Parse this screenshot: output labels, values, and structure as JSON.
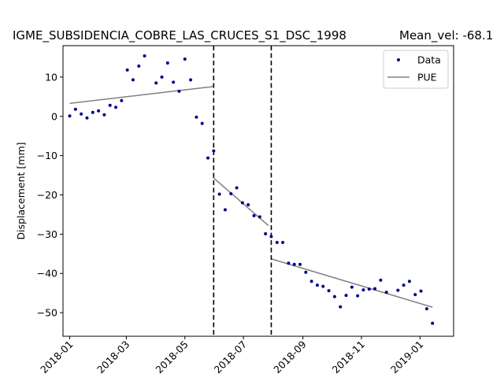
{
  "chart_data": {
    "type": "scatter",
    "title": "IGME_SUBSIDENCIA_COBRE_LAS_CRUCES_S1_DSC_1998",
    "mean_vel_text": "Mean_vel: -68.1",
    "xlabel": "",
    "ylabel": "Displacement [mm]",
    "xlim": [
      "2017-12-25",
      "2019-02-05"
    ],
    "ylim": [
      -56,
      18
    ],
    "x_ticks": [
      "2018-01",
      "2018-03",
      "2018-05",
      "2018-07",
      "2018-09",
      "2018-11",
      "2019-01"
    ],
    "y_ticks": [
      10,
      0,
      -10,
      -20,
      -30,
      -40,
      -50
    ],
    "y_tick_labels": [
      "10",
      "0",
      "−10",
      "−20",
      "−30",
      "−40",
      "−50"
    ],
    "grid": false,
    "legend_position": "top-right",
    "colors": {
      "data": "#00008b",
      "pue": "#808080",
      "breaks": "#000000"
    },
    "series": [
      {
        "name": "Data",
        "style": "points",
        "dates": [
          "2018-01-01",
          "2018-01-07",
          "2018-01-13",
          "2018-01-19",
          "2018-01-25",
          "2018-01-31",
          "2018-02-06",
          "2018-02-12",
          "2018-02-18",
          "2018-02-24",
          "2018-03-02",
          "2018-03-08",
          "2018-03-14",
          "2018-03-20",
          "2018-04-01",
          "2018-04-07",
          "2018-04-13",
          "2018-04-19",
          "2018-04-25",
          "2018-05-01",
          "2018-05-07",
          "2018-05-13",
          "2018-05-19",
          "2018-05-25",
          "2018-05-31",
          "2018-06-06",
          "2018-06-12",
          "2018-06-18",
          "2018-06-24",
          "2018-06-30",
          "2018-07-06",
          "2018-07-12",
          "2018-07-18",
          "2018-07-24",
          "2018-07-30",
          "2018-08-05",
          "2018-08-11",
          "2018-08-17",
          "2018-08-23",
          "2018-08-29",
          "2018-09-04",
          "2018-09-10",
          "2018-09-16",
          "2018-09-22",
          "2018-09-28",
          "2018-10-04",
          "2018-10-10",
          "2018-10-16",
          "2018-10-22",
          "2018-10-28",
          "2018-11-03",
          "2018-11-09",
          "2018-11-15",
          "2018-11-21",
          "2018-11-27",
          "2018-12-09",
          "2018-12-15",
          "2018-12-21",
          "2018-12-27",
          "2019-01-02",
          "2019-01-08",
          "2019-01-14"
        ],
        "values": [
          0.1,
          1.8,
          0.6,
          -0.4,
          1.0,
          1.4,
          0.4,
          2.8,
          2.3,
          4.0,
          11.8,
          9.3,
          12.8,
          15.4,
          8.5,
          10.0,
          13.6,
          8.7,
          6.4,
          14.6,
          9.3,
          -0.2,
          -1.8,
          -10.6,
          -8.8,
          -19.8,
          -23.8,
          -19.7,
          -18.2,
          -22.0,
          -22.5,
          -25.3,
          -25.6,
          -29.9,
          -30.6,
          -32.1,
          -32.1,
          -37.4,
          -37.7,
          -37.7,
          -39.7,
          -42.0,
          -43.0,
          -43.3,
          -44.4,
          -45.9,
          -48.5,
          -45.6,
          -43.5,
          -45.7,
          -44.2,
          -44.0,
          -43.9,
          -41.7,
          -44.8,
          -44.3,
          -43.0,
          -42.0,
          -45.4,
          -44.5,
          -49.0,
          -52.7
        ]
      },
      {
        "name": "PUE",
        "style": "line",
        "segments": [
          {
            "x": [
              "2018-01-01",
              "2018-05-31"
            ],
            "y": [
              3.3,
              7.6
            ]
          },
          {
            "x": [
              "2018-05-31",
              "2018-07-27"
            ],
            "y": [
              -15.7,
              -27.8
            ]
          },
          {
            "x": [
              "2018-07-30",
              "2019-01-14"
            ],
            "y": [
              -36.3,
              -48.6
            ]
          }
        ]
      }
    ],
    "break_lines": [
      "2018-05-31",
      "2018-07-30"
    ]
  }
}
